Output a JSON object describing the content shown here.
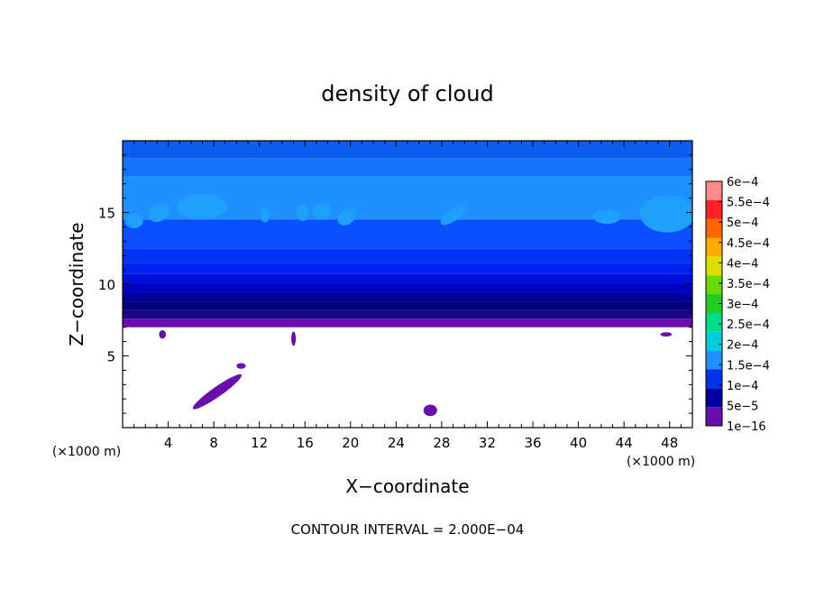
{
  "chart_data": {
    "type": "heatmap",
    "title": "density of cloud",
    "xlabel": "X−coordinate",
    "ylabel": "Z−coordinate",
    "x_unit": "(×1000 m)",
    "y_unit": "(×1000 m)",
    "footer": "CONTOUR INTERVAL = 2.000E−04",
    "xlim": [
      0,
      50
    ],
    "ylim": [
      0,
      20
    ],
    "x_ticks": [
      4,
      8,
      12,
      16,
      20,
      24,
      28,
      32,
      36,
      40,
      44,
      48
    ],
    "y_ticks": [
      5,
      10,
      15
    ],
    "colorbar": {
      "labels": [
        "1e−16",
        "5e−5",
        "1e−4",
        "1.5e−4",
        "2e−4",
        "2.5e−4",
        "3e−4",
        "3.5e−4",
        "4e−4",
        "4.5e−4",
        "5e−4",
        "5.5e−4",
        "6e−4"
      ],
      "colors": [
        "#6a0dad",
        "#0000a0",
        "#0033ee",
        "#1e90ff",
        "#00ccdd",
        "#00dd88",
        "#22cc22",
        "#66dd00",
        "#dddd00",
        "#ffaa00",
        "#ff6600",
        "#ff2222",
        "#ff8888"
      ]
    },
    "field_layers": [
      {
        "z_from": 7.0,
        "z_to": 7.6,
        "color": "#6a0dad"
      },
      {
        "z_from": 7.6,
        "z_to": 8.2,
        "color": "#1a0a8a"
      },
      {
        "z_from": 8.2,
        "z_to": 8.8,
        "color": "#000078"
      },
      {
        "z_from": 8.8,
        "z_to": 9.4,
        "color": "#00009c"
      },
      {
        "z_from": 9.4,
        "z_to": 10.0,
        "color": "#0000c0"
      },
      {
        "z_from": 10.0,
        "z_to": 10.7,
        "color": "#0010dc"
      },
      {
        "z_from": 10.7,
        "z_to": 11.5,
        "color": "#0022ee"
      },
      {
        "z_from": 11.5,
        "z_to": 12.5,
        "color": "#0033f5"
      },
      {
        "z_from": 12.5,
        "z_to": 14.5,
        "color": "#0a50ff"
      },
      {
        "z_from": 14.5,
        "z_to": 17.5,
        "color": "#1e90ff"
      },
      {
        "z_from": 17.5,
        "z_to": 18.8,
        "color": "#1573f8"
      },
      {
        "z_from": 18.8,
        "z_to": 20.0,
        "color": "#0a5ef0"
      }
    ],
    "upper_patches": [
      {
        "x": 3.2,
        "z": 15.0,
        "rx": 1.0,
        "rz": 0.6,
        "angle": -35
      },
      {
        "x": 7.0,
        "z": 15.4,
        "rx": 2.2,
        "rz": 0.9,
        "angle": 0
      },
      {
        "x": 12.5,
        "z": 14.8,
        "rx": 0.4,
        "rz": 0.5,
        "angle": 0
      },
      {
        "x": 15.8,
        "z": 15.0,
        "rx": 0.5,
        "rz": 0.6,
        "angle": 0
      },
      {
        "x": 17.5,
        "z": 15.1,
        "rx": 0.8,
        "rz": 0.6,
        "angle": 0
      },
      {
        "x": 19.7,
        "z": 14.7,
        "rx": 0.9,
        "rz": 0.5,
        "angle": -40
      },
      {
        "x": 29.0,
        "z": 14.8,
        "rx": 1.3,
        "rz": 0.4,
        "angle": -35
      },
      {
        "x": 42.5,
        "z": 14.7,
        "rx": 1.2,
        "rz": 0.5,
        "angle": 0
      },
      {
        "x": 47.8,
        "z": 14.9,
        "rx": 2.4,
        "rz": 1.3,
        "angle": 0
      },
      {
        "x": 1.0,
        "z": 14.4,
        "rx": 0.8,
        "rz": 0.5,
        "angle": 0
      }
    ],
    "lower_patches": [
      {
        "x": 8.3,
        "z": 2.5,
        "rx": 2.6,
        "rz": 0.35,
        "angle": -35
      },
      {
        "x": 10.4,
        "z": 4.3,
        "rx": 0.4,
        "rz": 0.2,
        "angle": 0
      },
      {
        "x": 27.0,
        "z": 1.2,
        "rx": 0.6,
        "rz": 0.4,
        "angle": 0
      },
      {
        "x": 47.7,
        "z": 6.5,
        "rx": 0.5,
        "rz": 0.15,
        "angle": 0
      },
      {
        "x": 15.0,
        "z": 6.2,
        "rx": 0.2,
        "rz": 0.5,
        "angle": 0
      },
      {
        "x": 3.5,
        "z": 6.5,
        "rx": 0.3,
        "rz": 0.3,
        "angle": 0
      }
    ]
  }
}
